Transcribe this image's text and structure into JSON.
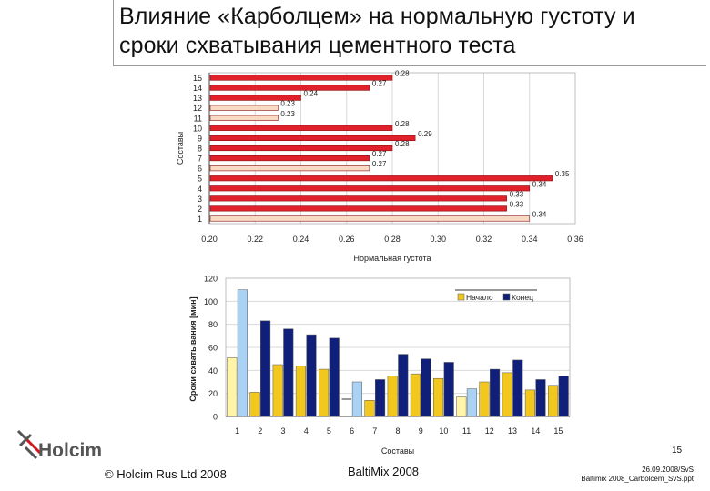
{
  "slide": {
    "title_line1": "Влияние «Карболцем» на нормальную густоту и",
    "title_line2": "сроки схватывания цементного теста",
    "page_number": "15",
    "copyright": "© Holcim Rus Ltd 2008",
    "event": "BaltiMix 2008",
    "file_date": "26.09.2008/SvS",
    "file_name": "Baltimix 2008_Carbolcem_SvS.ppt",
    "logo_text": "Holcim",
    "colors": {
      "red": "#e0212b",
      "pale": "#f7d9c4",
      "yellow": "#f2c81e",
      "light_yellow": "#fff4a8",
      "navy": "#10207a",
      "light_blue": "#a9d2f4"
    }
  },
  "chart_data": [
    {
      "type": "bar",
      "orientation": "horizontal",
      "ylabel": "Составы",
      "xlabel": "Нормальная густота",
      "xlim": [
        0.2,
        0.36
      ],
      "xticks": [
        "0.20",
        "0.22",
        "0.24",
        "0.26",
        "0.28",
        "0.30",
        "0.32",
        "0.34",
        "0.36"
      ],
      "grid": true,
      "categories": [
        "1",
        "2",
        "3",
        "4",
        "5",
        "6",
        "7",
        "8",
        "9",
        "10",
        "11",
        "12",
        "13",
        "14",
        "15"
      ],
      "values": [
        0.34,
        0.33,
        0.33,
        0.34,
        0.35,
        0.27,
        0.27,
        0.28,
        0.29,
        0.28,
        0.23,
        0.23,
        0.24,
        0.27,
        0.28
      ],
      "value_labels": [
        "0.34",
        "0.33",
        "0.33",
        "0.34",
        "0.35",
        "0.27",
        "0.27",
        "0.28",
        "0.29",
        "0.28",
        "0.23",
        "0.23",
        "0.24",
        "0.27",
        "0.28"
      ],
      "bar_colors": [
        "pale",
        "red",
        "red",
        "red",
        "red",
        "pale",
        "red",
        "red",
        "red",
        "red",
        "pale",
        "pale",
        "red",
        "red",
        "red"
      ]
    },
    {
      "type": "bar",
      "xlabel": "Составы",
      "ylabel": "Сроки схватывания [мин]",
      "ylim": [
        0,
        120
      ],
      "yticks": [
        "0",
        "20",
        "40",
        "60",
        "80",
        "100",
        "120"
      ],
      "grid": true,
      "legend_position": "top-right",
      "categories": [
        "1",
        "2",
        "3",
        "4",
        "5",
        "6",
        "7",
        "8",
        "9",
        "10",
        "11",
        "12",
        "13",
        "14",
        "15"
      ],
      "series": [
        {
          "name": "Начало",
          "values": [
            51,
            21,
            45,
            44,
            41,
            15,
            14,
            35,
            37,
            33,
            17,
            30,
            38,
            23,
            27
          ],
          "colors": [
            "light_yellow",
            "yellow",
            "yellow",
            "yellow",
            "yellow",
            "none",
            "yellow",
            "yellow",
            "yellow",
            "yellow",
            "light_yellow",
            "yellow",
            "yellow",
            "yellow",
            "yellow"
          ]
        },
        {
          "name": "Конец",
          "values": [
            110,
            83,
            76,
            71,
            68,
            30,
            32,
            54,
            50,
            47,
            24,
            41,
            49,
            32,
            35
          ],
          "colors": [
            "light_blue",
            "navy",
            "navy",
            "navy",
            "navy",
            "light_blue",
            "navy",
            "navy",
            "navy",
            "navy",
            "light_blue",
            "navy",
            "navy",
            "navy",
            "navy"
          ]
        }
      ]
    }
  ]
}
